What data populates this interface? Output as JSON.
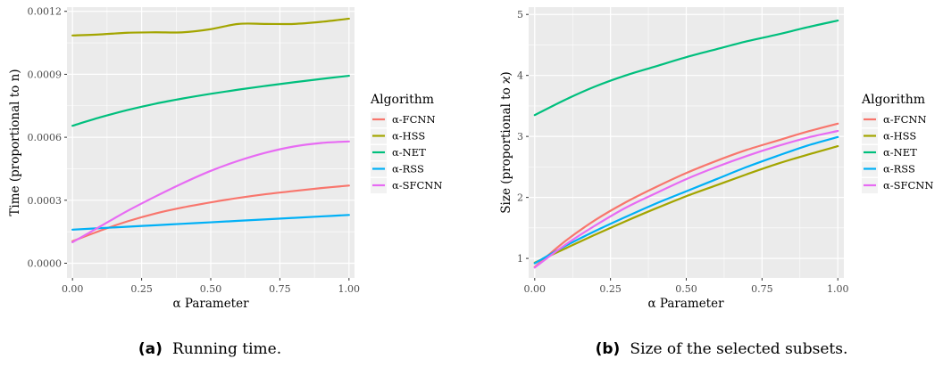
{
  "chart_data": [
    {
      "type": "line",
      "xlabel": "α Parameter",
      "ylabel": "Time (proportional to n)",
      "xlim": [
        -0.02,
        1.02
      ],
      "ylim": [
        -7e-05,
        0.00122
      ],
      "x_ticks": [
        0,
        0.25,
        0.5,
        0.75,
        1
      ],
      "x_tick_labels": [
        "0.00",
        "0.25",
        "0.50",
        "0.75",
        "1.00"
      ],
      "y_ticks": [
        0,
        0.0003,
        0.0006,
        0.0009,
        0.0012
      ],
      "y_tick_labels": [
        "0.0000",
        "0.0003",
        "0.0006",
        "0.0009",
        "0.0012"
      ],
      "grid": true,
      "legend_title": "Algorithm",
      "legend_position": "right",
      "x": [
        0,
        0.1,
        0.2,
        0.3,
        0.4,
        0.5,
        0.6,
        0.7,
        0.8,
        0.9,
        1.0
      ],
      "series": [
        {
          "name": "α-FCNN",
          "color": "#F8766D",
          "values": [
            0.000105,
            0.000155,
            0.0002,
            0.000237,
            0.000266,
            0.00029,
            0.000311,
            0.000329,
            0.000344,
            0.000358,
            0.00037
          ]
        },
        {
          "name": "α-HSS",
          "color": "#A3A500",
          "values": [
            0.001085,
            0.00109,
            0.001098,
            0.0011,
            0.0011,
            0.001115,
            0.00114,
            0.00114,
            0.00114,
            0.00115,
            0.001165
          ]
        },
        {
          "name": "α-NET",
          "color": "#00BF7D",
          "values": [
            0.000655,
            0.000695,
            0.00073,
            0.00076,
            0.000785,
            0.000807,
            0.000827,
            0.000845,
            0.000862,
            0.000878,
            0.000893
          ]
        },
        {
          "name": "α-RSS",
          "color": "#00B0F6",
          "values": [
            0.00016,
            0.000167,
            0.000174,
            0.000181,
            0.000188,
            0.000195,
            0.000202,
            0.000209,
            0.000216,
            0.000223,
            0.00023
          ]
        },
        {
          "name": "α-SFCNN",
          "color": "#E76BF3",
          "values": [
            0.0001,
            0.000175,
            0.00025,
            0.000318,
            0.000382,
            0.00044,
            0.000488,
            0.000527,
            0.000556,
            0.000573,
            0.00058
          ]
        }
      ]
    },
    {
      "type": "line",
      "xlabel": "α Parameter",
      "ylabel": "Size (proportional to ϰ)",
      "xlim": [
        -0.02,
        1.02
      ],
      "ylim": [
        0.68,
        5.12
      ],
      "x_ticks": [
        0,
        0.25,
        0.5,
        0.75,
        1
      ],
      "x_tick_labels": [
        "0.00",
        "0.25",
        "0.50",
        "0.75",
        "1.00"
      ],
      "y_ticks": [
        1,
        2,
        3,
        4,
        5
      ],
      "y_tick_labels": [
        "1",
        "2",
        "3",
        "4",
        "5"
      ],
      "grid": true,
      "legend_title": "Algorithm",
      "legend_position": "right",
      "x": [
        0,
        0.1,
        0.2,
        0.3,
        0.4,
        0.5,
        0.6,
        0.7,
        0.8,
        0.9,
        1.0
      ],
      "series": [
        {
          "name": "α-FCNN",
          "color": "#F8766D",
          "values": [
            0.86,
            1.28,
            1.63,
            1.92,
            2.17,
            2.4,
            2.6,
            2.78,
            2.93,
            3.08,
            3.21
          ]
        },
        {
          "name": "α-HSS",
          "color": "#A3A500",
          "values": [
            0.93,
            1.16,
            1.39,
            1.61,
            1.82,
            2.02,
            2.2,
            2.38,
            2.55,
            2.7,
            2.84
          ]
        },
        {
          "name": "α-NET",
          "color": "#00BF7D",
          "values": [
            3.35,
            3.6,
            3.82,
            4.0,
            4.15,
            4.3,
            4.43,
            4.56,
            4.67,
            4.79,
            4.9
          ]
        },
        {
          "name": "α-RSS",
          "color": "#00B0F6",
          "values": [
            0.92,
            1.2,
            1.45,
            1.68,
            1.9,
            2.1,
            2.3,
            2.5,
            2.68,
            2.85,
            2.99
          ]
        },
        {
          "name": "α-SFCNN",
          "color": "#E76BF3",
          "values": [
            0.85,
            1.22,
            1.54,
            1.83,
            2.07,
            2.3,
            2.5,
            2.68,
            2.84,
            2.98,
            3.09
          ]
        }
      ]
    }
  ],
  "captions": [
    {
      "tag": "(a)",
      "text": "Running time."
    },
    {
      "tag": "(b)",
      "text": "Size of the selected subsets."
    }
  ],
  "colors": {
    "panel_bg": "#EBEBEB",
    "grid": "#FFFFFF"
  }
}
